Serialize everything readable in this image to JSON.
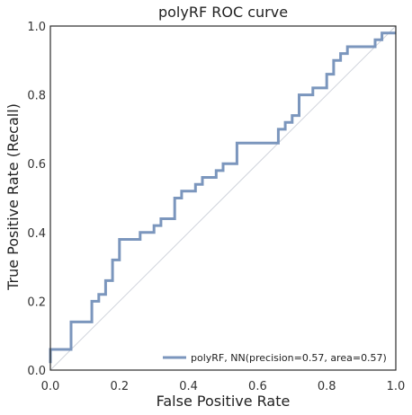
{
  "chart_data": {
    "type": "line",
    "title": "polyRF ROC curve",
    "xlabel": "False Positive Rate",
    "ylabel": "True Positive Rate (Recall)",
    "xlim": [
      0.0,
      1.0
    ],
    "ylim": [
      0.0,
      1.0
    ],
    "xticks": [
      "0.0",
      "0.2",
      "0.4",
      "0.6",
      "0.8",
      "1.0"
    ],
    "yticks": [
      "0.0",
      "0.2",
      "0.4",
      "0.6",
      "0.8",
      "1.0"
    ],
    "grid": false,
    "legend_position": "lower-right",
    "diagonal_color": "#d0d4dc",
    "series": [
      {
        "name": "polyRF, NN(precision=0.57, area=0.57)",
        "color": "#7b96bd",
        "x": [
          0.0,
          0.0,
          0.0,
          0.06,
          0.06,
          0.12,
          0.12,
          0.14,
          0.14,
          0.16,
          0.16,
          0.18,
          0.18,
          0.2,
          0.2,
          0.26,
          0.26,
          0.3,
          0.3,
          0.32,
          0.32,
          0.36,
          0.36,
          0.38,
          0.38,
          0.42,
          0.42,
          0.44,
          0.44,
          0.48,
          0.48,
          0.5,
          0.5,
          0.54,
          0.54,
          0.66,
          0.66,
          0.68,
          0.68,
          0.7,
          0.7,
          0.72,
          0.72,
          0.76,
          0.76,
          0.8,
          0.8,
          0.82,
          0.82,
          0.84,
          0.84,
          0.86,
          0.86,
          0.94,
          0.94,
          0.96,
          0.96,
          1.0
        ],
        "y": [
          0.02,
          0.06,
          0.06,
          0.06,
          0.14,
          0.14,
          0.2,
          0.2,
          0.22,
          0.22,
          0.26,
          0.26,
          0.32,
          0.32,
          0.38,
          0.38,
          0.4,
          0.4,
          0.42,
          0.42,
          0.44,
          0.44,
          0.5,
          0.5,
          0.52,
          0.52,
          0.54,
          0.54,
          0.56,
          0.56,
          0.58,
          0.58,
          0.6,
          0.6,
          0.66,
          0.66,
          0.7,
          0.7,
          0.72,
          0.72,
          0.74,
          0.74,
          0.8,
          0.8,
          0.82,
          0.82,
          0.86,
          0.86,
          0.9,
          0.9,
          0.92,
          0.92,
          0.94,
          0.94,
          0.96,
          0.96,
          0.98,
          0.98
        ]
      }
    ]
  }
}
